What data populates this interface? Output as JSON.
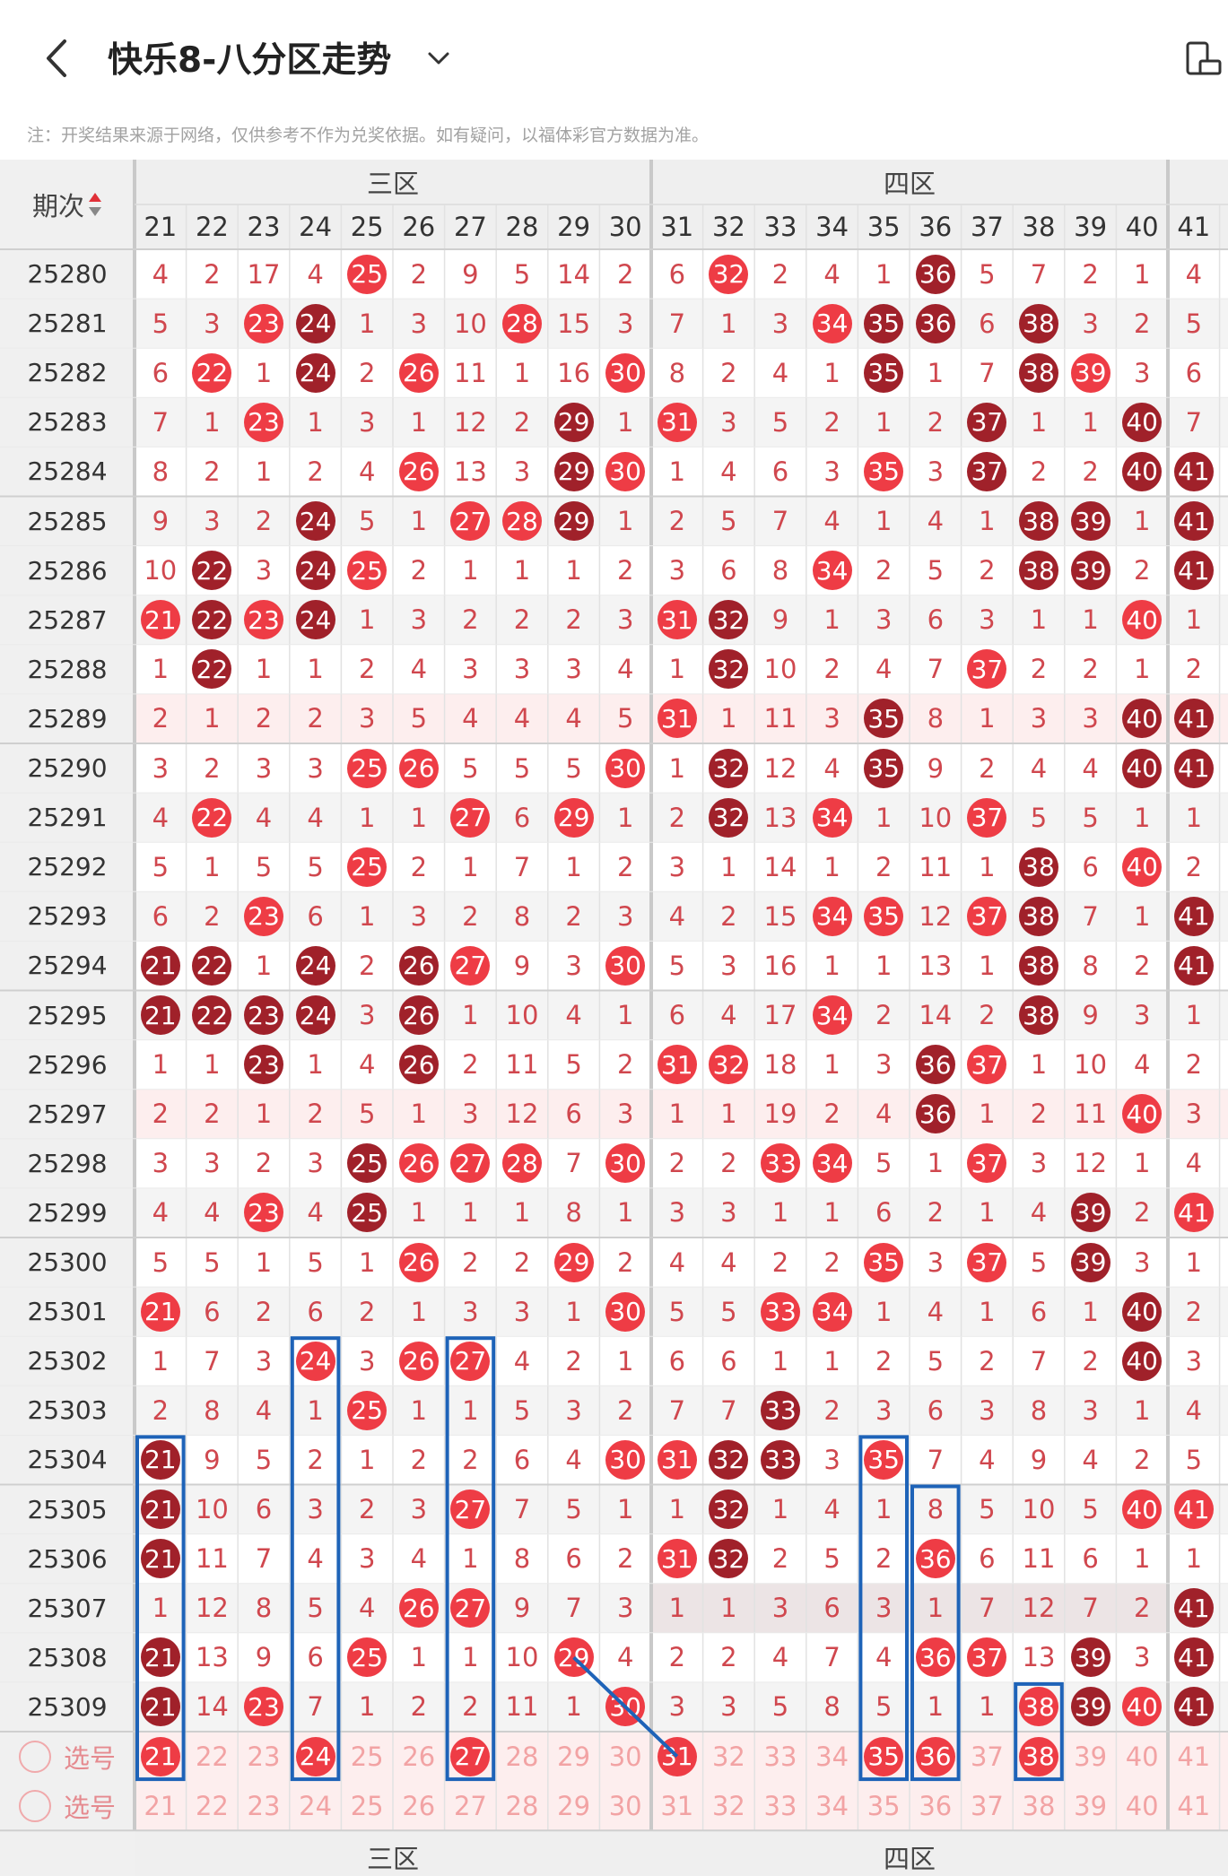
{
  "header": {
    "title": "快乐8-八分区走势",
    "back_icon": "chevron-left-icon",
    "dropdown_icon": "chevron-down-icon",
    "right_icon": "device-rotate-icon"
  },
  "notice": "注：开奖结果来源于网络，仅供参考不作为兑奖依据。如有疑问，以福体彩官方数据为准。",
  "table": {
    "period_header": "期次",
    "sort_icon": "sort-arrows-icon",
    "zones": [
      "三区",
      "四区"
    ],
    "columns": [
      "21",
      "22",
      "23",
      "24",
      "25",
      "26",
      "27",
      "28",
      "29",
      "30",
      "31",
      "32",
      "33",
      "34",
      "35",
      "36",
      "37",
      "38",
      "39",
      "40",
      "41"
    ],
    "rows": [
      {
        "period": "25280",
        "cells": [
          "4",
          "2",
          "17",
          "4",
          "25",
          "2",
          "9",
          "5",
          "14",
          "2",
          "6",
          "32",
          "2",
          "4",
          "1",
          "36",
          "5",
          "7",
          "2",
          "1",
          "4"
        ]
      },
      {
        "period": "25281",
        "cells": [
          "5",
          "3",
          "23",
          "24",
          "1",
          "3",
          "10",
          "28",
          "15",
          "3",
          "7",
          "1",
          "3",
          "34",
          "35",
          "36",
          "6",
          "38",
          "3",
          "2",
          "5"
        ]
      },
      {
        "period": "25282",
        "cells": [
          "6",
          "22",
          "1",
          "24",
          "2",
          "26",
          "11",
          "1",
          "16",
          "30",
          "8",
          "2",
          "4",
          "1",
          "35",
          "1",
          "7",
          "38",
          "39",
          "3",
          "6"
        ]
      },
      {
        "period": "25283",
        "cells": [
          "7",
          "1",
          "23",
          "1",
          "3",
          "1",
          "12",
          "2",
          "29",
          "1",
          "31",
          "3",
          "5",
          "2",
          "1",
          "2",
          "37",
          "1",
          "1",
          "40",
          "7"
        ]
      },
      {
        "period": "25284",
        "cells": [
          "8",
          "2",
          "1",
          "2",
          "4",
          "26",
          "13",
          "3",
          "29",
          "30",
          "1",
          "4",
          "6",
          "3",
          "35",
          "3",
          "37",
          "2",
          "2",
          "40",
          "41"
        ]
      },
      {
        "period": "25285",
        "cells": [
          "9",
          "3",
          "2",
          "24",
          "5",
          "1",
          "27",
          "28",
          "29",
          "1",
          "2",
          "5",
          "7",
          "4",
          "1",
          "4",
          "1",
          "38",
          "39",
          "1",
          "41"
        ]
      },
      {
        "period": "25286",
        "cells": [
          "10",
          "22",
          "3",
          "24",
          "25",
          "2",
          "1",
          "1",
          "1",
          "2",
          "3",
          "6",
          "8",
          "34",
          "2",
          "5",
          "2",
          "38",
          "39",
          "2",
          "41"
        ]
      },
      {
        "period": "25287",
        "cells": [
          "21",
          "22",
          "23",
          "24",
          "1",
          "3",
          "2",
          "2",
          "2",
          "3",
          "31",
          "32",
          "9",
          "1",
          "3",
          "6",
          "3",
          "1",
          "1",
          "40",
          "1"
        ]
      },
      {
        "period": "25288",
        "cells": [
          "1",
          "22",
          "1",
          "1",
          "2",
          "4",
          "3",
          "3",
          "3",
          "4",
          "1",
          "32",
          "10",
          "2",
          "4",
          "7",
          "37",
          "2",
          "2",
          "1",
          "2"
        ]
      },
      {
        "period": "25289",
        "cells": [
          "2",
          "1",
          "2",
          "2",
          "3",
          "5",
          "4",
          "4",
          "4",
          "5",
          "31",
          "1",
          "11",
          "3",
          "35",
          "8",
          "1",
          "3",
          "3",
          "40",
          "41"
        ]
      },
      {
        "period": "25290",
        "cells": [
          "3",
          "2",
          "3",
          "3",
          "25",
          "26",
          "5",
          "5",
          "5",
          "30",
          "1",
          "32",
          "12",
          "4",
          "35",
          "9",
          "2",
          "4",
          "4",
          "40",
          "41"
        ]
      },
      {
        "period": "25291",
        "cells": [
          "4",
          "22",
          "4",
          "4",
          "1",
          "1",
          "27",
          "6",
          "29",
          "1",
          "2",
          "32",
          "13",
          "34",
          "1",
          "10",
          "37",
          "5",
          "5",
          "1",
          "1"
        ]
      },
      {
        "period": "25292",
        "cells": [
          "5",
          "1",
          "5",
          "5",
          "25",
          "2",
          "1",
          "7",
          "1",
          "2",
          "3",
          "1",
          "14",
          "1",
          "2",
          "11",
          "1",
          "38",
          "6",
          "40",
          "2"
        ]
      },
      {
        "period": "25293",
        "cells": [
          "6",
          "2",
          "23",
          "6",
          "1",
          "3",
          "2",
          "8",
          "2",
          "3",
          "4",
          "2",
          "15",
          "34",
          "35",
          "12",
          "37",
          "38",
          "7",
          "1",
          "41"
        ]
      },
      {
        "period": "25294",
        "cells": [
          "21",
          "22",
          "1",
          "24",
          "2",
          "26",
          "27",
          "9",
          "3",
          "30",
          "5",
          "3",
          "16",
          "1",
          "1",
          "13",
          "1",
          "38",
          "8",
          "2",
          "41"
        ]
      },
      {
        "period": "25295",
        "cells": [
          "21",
          "22",
          "23",
          "24",
          "3",
          "26",
          "1",
          "10",
          "4",
          "1",
          "6",
          "4",
          "17",
          "34",
          "2",
          "14",
          "2",
          "38",
          "9",
          "3",
          "1"
        ]
      },
      {
        "period": "25296",
        "cells": [
          "1",
          "1",
          "23",
          "1",
          "4",
          "26",
          "2",
          "11",
          "5",
          "2",
          "31",
          "32",
          "18",
          "1",
          "3",
          "36",
          "37",
          "1",
          "10",
          "4",
          "2"
        ]
      },
      {
        "period": "25297",
        "cells": [
          "2",
          "2",
          "1",
          "2",
          "5",
          "1",
          "3",
          "12",
          "6",
          "3",
          "1",
          "1",
          "19",
          "2",
          "4",
          "36",
          "1",
          "2",
          "11",
          "40",
          "3"
        ]
      },
      {
        "period": "25298",
        "cells": [
          "3",
          "3",
          "2",
          "3",
          "25",
          "26",
          "27",
          "28",
          "7",
          "30",
          "2",
          "2",
          "33",
          "34",
          "5",
          "1",
          "37",
          "3",
          "12",
          "1",
          "4"
        ]
      },
      {
        "period": "25299",
        "cells": [
          "4",
          "4",
          "23",
          "4",
          "25",
          "1",
          "1",
          "1",
          "8",
          "1",
          "3",
          "3",
          "1",
          "1",
          "6",
          "2",
          "1",
          "4",
          "39",
          "2",
          "41"
        ]
      },
      {
        "period": "25300",
        "cells": [
          "5",
          "5",
          "1",
          "5",
          "1",
          "26",
          "2",
          "2",
          "29",
          "2",
          "4",
          "4",
          "2",
          "2",
          "35",
          "3",
          "37",
          "5",
          "39",
          "3",
          "1"
        ]
      },
      {
        "period": "25301",
        "cells": [
          "21",
          "6",
          "2",
          "6",
          "2",
          "1",
          "3",
          "3",
          "1",
          "30",
          "5",
          "5",
          "33",
          "34",
          "1",
          "4",
          "1",
          "6",
          "1",
          "40",
          "2"
        ]
      },
      {
        "period": "25302",
        "cells": [
          "1",
          "7",
          "3",
          "24",
          "3",
          "26",
          "27",
          "4",
          "2",
          "1",
          "6",
          "6",
          "1",
          "1",
          "2",
          "5",
          "2",
          "7",
          "2",
          "40",
          "3"
        ]
      },
      {
        "period": "25303",
        "cells": [
          "2",
          "8",
          "4",
          "1",
          "25",
          "1",
          "1",
          "5",
          "3",
          "2",
          "7",
          "7",
          "33",
          "2",
          "3",
          "6",
          "3",
          "8",
          "3",
          "1",
          "4"
        ]
      },
      {
        "period": "25304",
        "cells": [
          "21",
          "9",
          "5",
          "2",
          "1",
          "2",
          "2",
          "6",
          "4",
          "30",
          "31",
          "32",
          "33",
          "3",
          "35",
          "7",
          "4",
          "9",
          "4",
          "2",
          "5"
        ]
      },
      {
        "period": "25305",
        "cells": [
          "21",
          "10",
          "6",
          "3",
          "2",
          "3",
          "27",
          "7",
          "5",
          "1",
          "1",
          "32",
          "1",
          "4",
          "1",
          "8",
          "5",
          "10",
          "5",
          "40",
          "41"
        ]
      },
      {
        "period": "25306",
        "cells": [
          "21",
          "11",
          "7",
          "4",
          "3",
          "4",
          "1",
          "8",
          "6",
          "2",
          "31",
          "32",
          "2",
          "5",
          "2",
          "36",
          "6",
          "11",
          "6",
          "1",
          "1"
        ]
      },
      {
        "period": "25307",
        "cells": [
          "1",
          "12",
          "8",
          "5",
          "4",
          "26",
          "27",
          "9",
          "7",
          "3",
          "1",
          "1",
          "3",
          "6",
          "3",
          "1",
          "7",
          "12",
          "7",
          "2",
          "41"
        ]
      },
      {
        "period": "25308",
        "cells": [
          "21",
          "13",
          "9",
          "6",
          "25",
          "1",
          "1",
          "10",
          "29",
          "4",
          "2",
          "2",
          "4",
          "7",
          "4",
          "36",
          "37",
          "13",
          "39",
          "3",
          "41"
        ]
      },
      {
        "period": "25309",
        "cells": [
          "21",
          "14",
          "23",
          "7",
          "1",
          "2",
          "2",
          "11",
          "1",
          "30",
          "3",
          "3",
          "5",
          "8",
          "5",
          "1",
          "1",
          "38",
          "39",
          "40",
          "41"
        ]
      }
    ],
    "select_label": "选号",
    "select_rows": [
      [
        "21",
        "22",
        "23",
        "24",
        "25",
        "26",
        "27",
        "28",
        "29",
        "30",
        "31",
        "32",
        "33",
        "34",
        "35",
        "36",
        "37",
        "38",
        "39",
        "40",
        "41"
      ],
      [
        "21",
        "22",
        "23",
        "24",
        "25",
        "26",
        "27",
        "28",
        "29",
        "30",
        "31",
        "32",
        "33",
        "34",
        "35",
        "36",
        "37",
        "38",
        "39",
        "40",
        "41"
      ]
    ],
    "selected": [
      "21",
      "24",
      "27",
      "31",
      "35",
      "36",
      "38"
    ]
  },
  "colors": {
    "ball_red": "#ee3c45",
    "ball_dark": "#a0212a",
    "miss_text": "#d0474e",
    "select_text": "#f2a3a4",
    "highlight_box": "#1e63b8"
  }
}
